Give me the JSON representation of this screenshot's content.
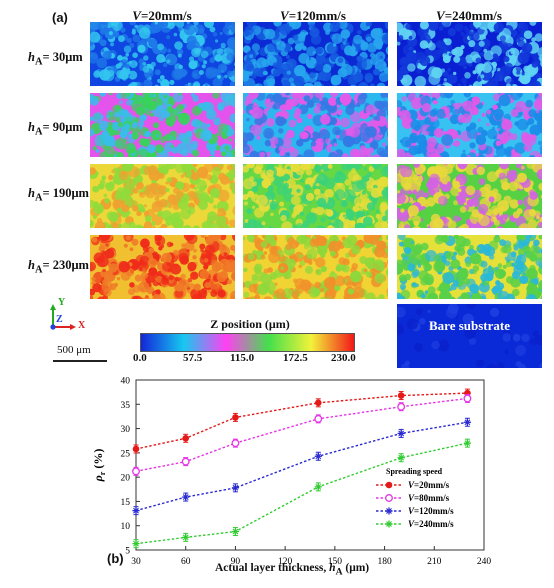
{
  "figure": {
    "panel_a_label": "(a)",
    "panel_b_label": "(b)",
    "columns": [
      "V=20mm/s",
      "V=120mm/s",
      "V=240mm/s"
    ],
    "rows": [
      "hA= 30μm",
      "hA= 90μm",
      "hA= 190μm",
      "hA= 230μm"
    ],
    "row_parts": [
      {
        "pre": "h",
        "sub": "A",
        "post": "= 30μm"
      },
      {
        "pre": "h",
        "sub": "A",
        "post": "= 90μm"
      },
      {
        "pre": "h",
        "sub": "A",
        "post": "= 190μm"
      },
      {
        "pre": "h",
        "sub": "A",
        "post": "= 230μm"
      }
    ],
    "col_parts": [
      {
        "v": "V",
        "rest": "=20mm/s"
      },
      {
        "v": "V",
        "rest": "=120mm/s"
      },
      {
        "v": "V",
        "rest": "=240mm/s"
      }
    ],
    "bare_substrate_label": "Bare substrate",
    "axes_icon": {
      "y": "Y",
      "z": "Z",
      "x": "X"
    },
    "scale_bar_label": "500 μm",
    "colorbar": {
      "title": "Z position (μm)",
      "ticks": [
        "0.0",
        "57.5",
        "115.0",
        "172.5",
        "230.0"
      ],
      "colors": [
        "#1426d8",
        "#17c8f0",
        "#ff40f2",
        "#44e04c",
        "#f2f23a",
        "#f21818"
      ]
    },
    "tile_palette": {
      "r0c0": [
        "#0f45e0",
        "#33c6ef",
        "#1e78e8"
      ],
      "r0c1": [
        "#0b2ad4",
        "#27a6ee",
        "#1659e0"
      ],
      "r0c2": [
        "#0a1fd2",
        "#1238da",
        "#5fd3f3"
      ],
      "r1c0": [
        "#e454ec",
        "#39bdea",
        "#38d25a"
      ],
      "r1c1": [
        "#2bb8ee",
        "#e459ea",
        "#3578e4"
      ],
      "r1c2": [
        "#38c2f2",
        "#e05ae9",
        "#1b8be8"
      ],
      "r2c0": [
        "#ecd838",
        "#8fdc3c",
        "#f0a030"
      ],
      "r2c1": [
        "#66d844",
        "#e8dd3a",
        "#3bd27a"
      ],
      "r2c2": [
        "#56d143",
        "#e8d83c",
        "#d462e4"
      ],
      "r3c0": [
        "#f0c030",
        "#ef2a1a",
        "#f07a28"
      ],
      "r3c1": [
        "#f0d434",
        "#f0902a",
        "#8fd83c"
      ],
      "r3c2": [
        "#e6e03a",
        "#58d048",
        "#2ab8d8"
      ],
      "bare": [
        "#0a2ad8",
        "#1e3fe0",
        "#0a22cc"
      ]
    }
  },
  "chart_data": {
    "type": "line",
    "xlabel": "Actual layer thickness, hA (μm)",
    "ylabel": "ρr (%)",
    "xlim": [
      30,
      240
    ],
    "ylim": [
      5,
      40
    ],
    "xticks": [
      30,
      60,
      90,
      120,
      150,
      180,
      210,
      240
    ],
    "yticks": [
      5,
      10,
      15,
      20,
      25,
      30,
      35,
      40
    ],
    "legend_title": "Spreading speed",
    "legend_position": "bottom-right",
    "series": [
      {
        "name": "V=20mm/s",
        "color": "#e61919",
        "marker": "filled-circle",
        "x": [
          30,
          60,
          90,
          140,
          190,
          230
        ],
        "y": [
          25.8,
          28.0,
          32.3,
          35.3,
          36.8,
          37.3
        ]
      },
      {
        "name": "V=80mm/s",
        "color": "#e633e6",
        "marker": "open-circle",
        "x": [
          30,
          60,
          90,
          140,
          190,
          230
        ],
        "y": [
          21.2,
          23.2,
          27.0,
          32.0,
          34.5,
          36.2
        ]
      },
      {
        "name": "V=120mm/s",
        "color": "#2a2ad2",
        "marker": "star",
        "x": [
          30,
          60,
          90,
          140,
          190,
          230
        ],
        "y": [
          13.1,
          15.9,
          17.8,
          24.3,
          29.0,
          31.3
        ]
      },
      {
        "name": "V=240mm/s",
        "color": "#33cc33",
        "marker": "asterisk",
        "x": [
          30,
          60,
          90,
          140,
          190,
          230
        ],
        "y": [
          6.3,
          7.6,
          8.8,
          18.0,
          24.0,
          27.0
        ]
      }
    ]
  }
}
